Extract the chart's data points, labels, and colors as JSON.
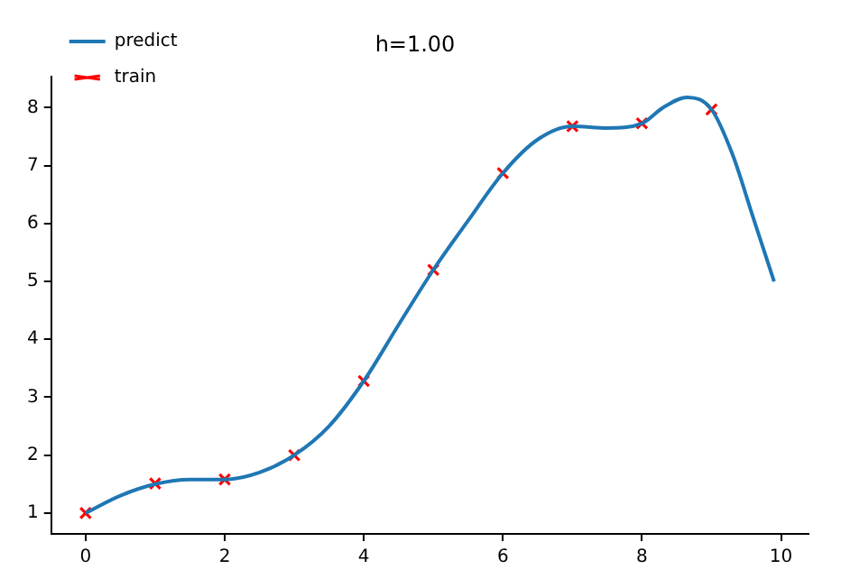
{
  "chart_data": {
    "type": "line",
    "title": "h=1.00",
    "legend": "top left",
    "grid": false,
    "xlim": [
      -0.495,
      10.395
    ],
    "xticks": [
      0,
      2,
      4,
      6,
      8,
      10
    ],
    "ylim": [
      0.64,
      8.54
    ],
    "yticks": [
      1,
      2,
      3,
      4,
      5,
      6,
      7,
      8
    ],
    "series": [
      {
        "name": "predict",
        "type": "line",
        "color": "#1f77b4",
        "marker": "none",
        "x": [
          0,
          0.5,
          1,
          1.5,
          2,
          2.5,
          3,
          3.5,
          4,
          4.5,
          5,
          5.5,
          6,
          6.5,
          7,
          7.5,
          8,
          8.3,
          8.65,
          9,
          9.3,
          9.6,
          9.9
        ],
        "values": [
          1,
          1.3,
          1.5,
          1.58,
          1.58,
          1.7,
          2.0,
          2.5,
          3.28,
          4.25,
          5.2,
          6.05,
          6.87,
          7.45,
          7.68,
          7.65,
          7.73,
          8.0,
          8.18,
          7.97,
          7.2,
          6.1,
          5.0
        ]
      },
      {
        "name": "train",
        "type": "scatter",
        "color": "#ff0000",
        "marker": "cross",
        "x": [
          0,
          1,
          2,
          3,
          4,
          5,
          6,
          7,
          8,
          9
        ],
        "values": [
          1,
          1.51,
          1.58,
          2.0,
          3.28,
          5.2,
          6.87,
          7.68,
          7.73,
          7.97
        ]
      }
    ]
  }
}
